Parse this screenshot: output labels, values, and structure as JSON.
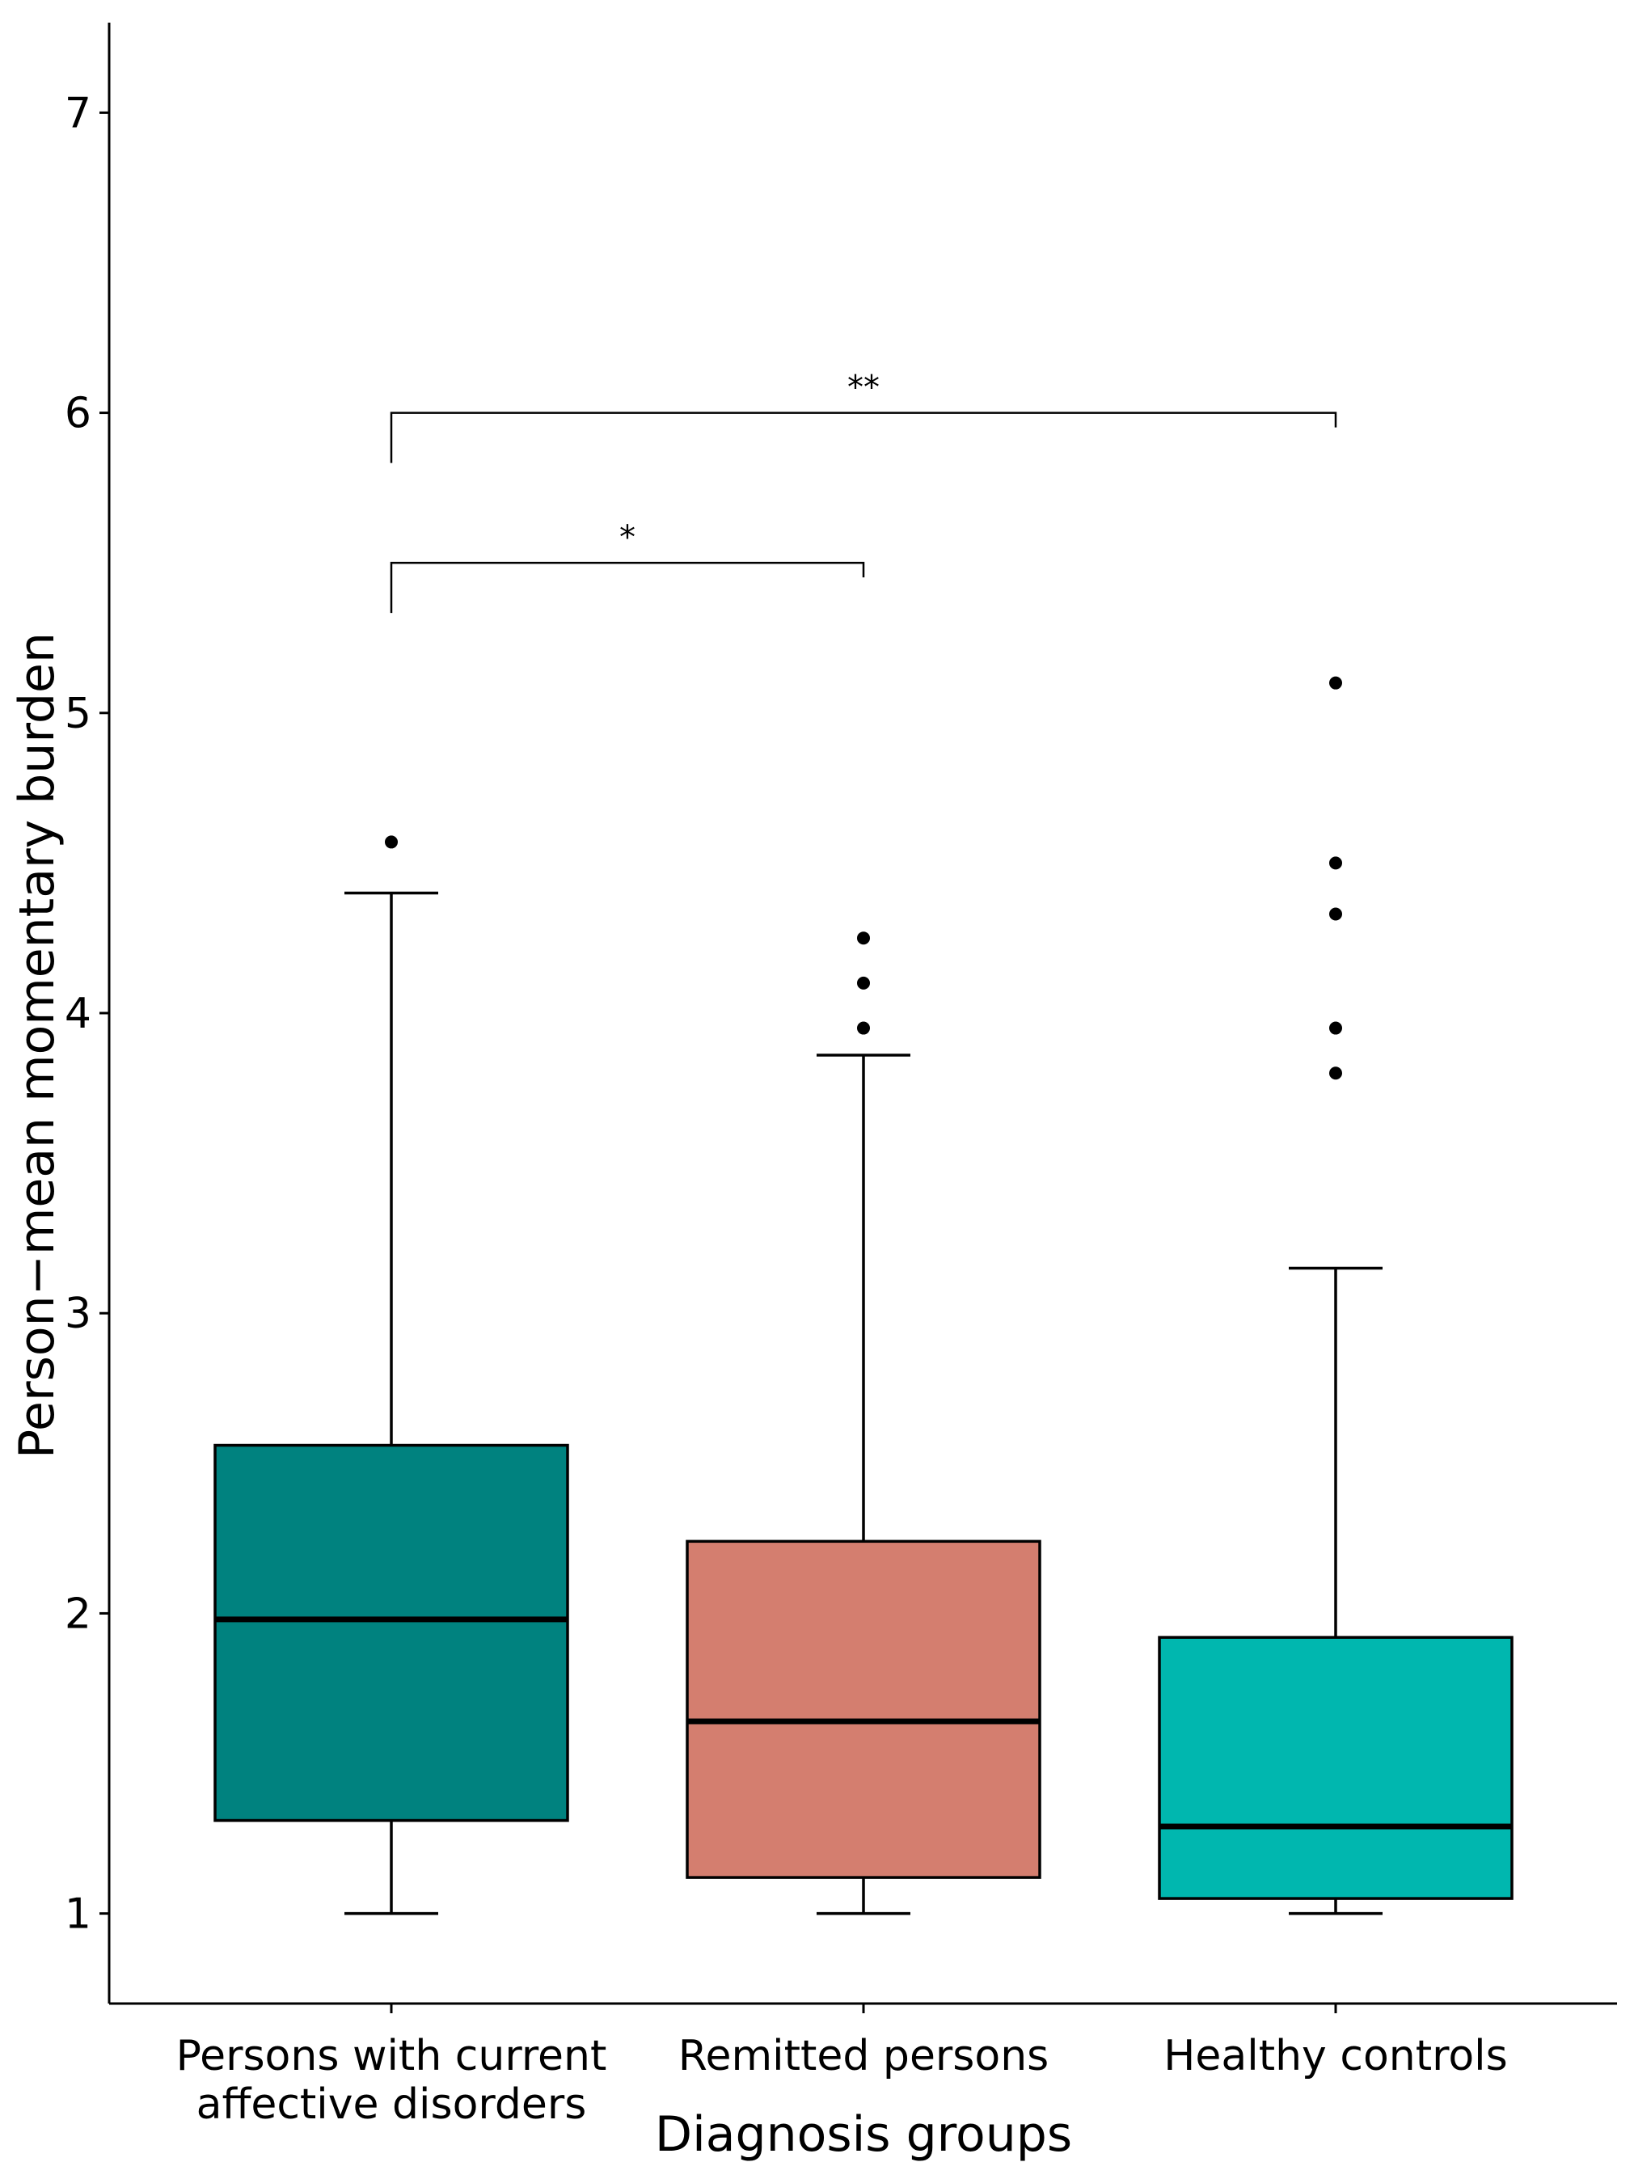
{
  "chart_data": {
    "type": "boxplot",
    "xlabel": "Diagnosis groups",
    "ylabel": "Person−mean momentary burden",
    "ylim": [
      0.7,
      7.3
    ],
    "yticks": [
      1,
      2,
      3,
      4,
      5,
      6,
      7
    ],
    "legend": "none",
    "grid": false,
    "groups": [
      {
        "label_lines": [
          "Persons with current",
          "affective disorders"
        ],
        "color": "#00827F",
        "whisker_low": 1.0,
        "q1": 1.31,
        "median": 1.98,
        "q3": 2.56,
        "whisker_high": 4.4,
        "outliers": [
          4.57
        ]
      },
      {
        "label_lines": [
          "Remitted persons"
        ],
        "color": "#D47E6F",
        "whisker_low": 1.0,
        "q1": 1.12,
        "median": 1.64,
        "q3": 2.24,
        "whisker_high": 3.86,
        "outliers": [
          3.95,
          4.1,
          4.25
        ]
      },
      {
        "label_lines": [
          "Healthy controls"
        ],
        "color": "#00B7AF",
        "whisker_low": 1.0,
        "q1": 1.05,
        "median": 1.29,
        "q3": 1.92,
        "whisker_high": 3.15,
        "outliers": [
          3.8,
          3.95,
          4.33,
          4.5,
          5.1
        ]
      }
    ],
    "significance": [
      {
        "from": 0,
        "to": 1,
        "y": 5.5,
        "label": "*"
      },
      {
        "from": 0,
        "to": 2,
        "y": 6.0,
        "label": "**"
      }
    ]
  }
}
